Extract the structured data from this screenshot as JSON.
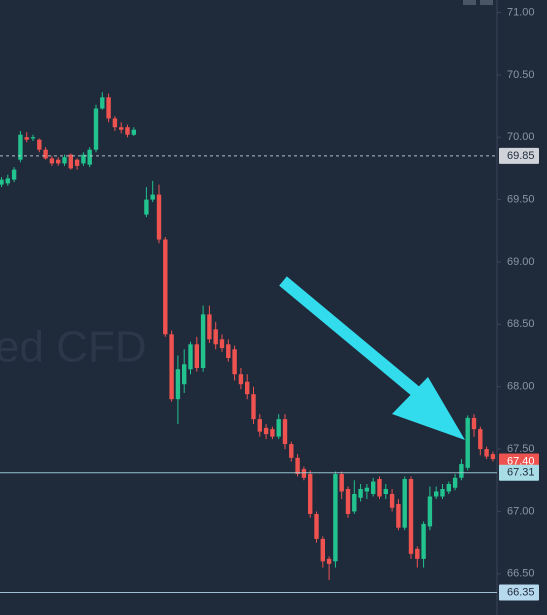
{
  "chart_data": {
    "type": "candlestick",
    "watermark": "ed CFD",
    "up_color": "#22c38e",
    "down_color": "#ef5350",
    "ylim": [
      66.17,
      71.1
    ],
    "yticks": [
      {
        "value": 71,
        "label": "71.00"
      },
      {
        "value": 70.5,
        "label": "70.50"
      },
      {
        "value": 70,
        "label": "70.00"
      },
      {
        "value": 69.5,
        "label": "69.50"
      },
      {
        "value": 69,
        "label": "69.00"
      },
      {
        "value": 68.5,
        "label": "68.50"
      },
      {
        "value": 68,
        "label": "68.00"
      },
      {
        "value": 67.5,
        "label": "67.50"
      },
      {
        "value": 67,
        "label": "67.00"
      },
      {
        "value": 66.5,
        "label": "66.50"
      }
    ],
    "price_lines": [
      {
        "value": 69.85,
        "label": "69.85",
        "color": "#d0d4da",
        "text_color": "#1f2a3b",
        "style": "dashed"
      },
      {
        "value": 67.4,
        "label": "67.40",
        "color": "#ef5350",
        "text_color": "#ffffff",
        "style": "none"
      },
      {
        "value": 67.31,
        "label": "67.31",
        "color": "#a9dde6",
        "text_color": "#1f2a3b",
        "style": "solid"
      },
      {
        "value": 66.35,
        "label": "66.35",
        "color": "#b7d9ee",
        "text_color": "#1f2a3b",
        "style": "solid"
      }
    ],
    "open": [
      69.62,
      69.63,
      69.66,
      69.82,
      70.0,
      69.99,
      69.98,
      69.9,
      69.83,
      69.82,
      69.79,
      69.86,
      69.82,
      69.79,
      69.78,
      69.9,
      70.23,
      70.32,
      70.15,
      70.08,
      70.08,
      70.02,
      null,
      69.38,
      69.5,
      69.54,
      69.18,
      68.42,
      67.9,
      68.02,
      68.14,
      68.34,
      68.15,
      68.58,
      68.46,
      68.38,
      68.34,
      68.3,
      68.1,
      68.04,
      67.94,
      67.74,
      67.67,
      67.66,
      67.6,
      67.74,
      67.54,
      67.43,
      67.34,
      67.3,
      66.98,
      66.78,
      66.62,
      66.6,
      67.3,
      67.18,
      67.0,
      67.11,
      67.16,
      67.14,
      67.26,
      67.14,
      67.14,
      67.06,
      66.87,
      67.26,
      66.7,
      66.62,
      66.88,
      67.12,
      67.12,
      67.16,
      67.19,
      67.27,
      67.35,
      67.75,
      67.66,
      67.5,
      67.46
    ],
    "high": [
      69.68,
      69.7,
      69.76,
      70.05,
      70.04,
      70.02,
      69.99,
      69.92,
      69.85,
      69.84,
      69.86,
      69.87,
      69.83,
      69.88,
      69.92,
      70.26,
      70.36,
      70.35,
      70.17,
      70.12,
      70.1,
      70.08,
      null,
      69.6,
      69.65,
      69.62,
      69.2,
      68.45,
      68.25,
      68.3,
      68.36,
      68.4,
      68.65,
      68.65,
      68.52,
      68.42,
      68.38,
      68.33,
      68.15,
      68.1,
      68.0,
      67.78,
      67.7,
      67.68,
      67.78,
      67.78,
      67.56,
      67.46,
      67.36,
      67.33,
      67.0,
      66.8,
      66.64,
      67.32,
      67.32,
      67.2,
      67.25,
      67.22,
      67.22,
      67.27,
      67.28,
      67.22,
      67.18,
      67.1,
      67.28,
      67.28,
      66.72,
      66.92,
      67.2,
      67.2,
      67.22,
      67.24,
      67.3,
      67.42,
      67.77,
      67.78,
      67.68,
      67.52,
      67.48
    ],
    "low": [
      69.6,
      69.61,
      69.64,
      69.8,
      69.96,
      69.97,
      69.88,
      69.82,
      69.77,
      69.77,
      69.77,
      69.74,
      69.74,
      69.77,
      69.76,
      69.88,
      70.22,
      70.12,
      70.05,
      70.03,
      70.0,
      70.01,
      null,
      69.36,
      69.48,
      69.15,
      68.4,
      67.88,
      67.7,
      67.95,
      68.1,
      68.12,
      68.12,
      68.35,
      68.3,
      68.28,
      68.2,
      68.05,
      67.98,
      67.9,
      67.7,
      67.6,
      67.58,
      67.58,
      67.58,
      67.5,
      67.4,
      67.28,
      67.25,
      66.95,
      66.75,
      66.55,
      66.45,
      66.55,
      67.1,
      66.95,
      66.98,
      67.08,
      67.1,
      67.12,
      67.1,
      67.1,
      67.0,
      66.85,
      66.85,
      66.62,
      66.55,
      66.55,
      66.85,
      67.1,
      67.1,
      67.14,
      67.17,
      67.25,
      67.33,
      67.6,
      67.45,
      67.42,
      67.4
    ],
    "close": [
      69.66,
      69.67,
      69.74,
      70.02,
      69.98,
      70.0,
      69.9,
      69.83,
      69.79,
      69.79,
      69.84,
      69.75,
      69.77,
      69.86,
      69.9,
      70.23,
      70.32,
      70.15,
      70.08,
      70.06,
      70.02,
      70.06,
      null,
      69.5,
      69.54,
      69.18,
      68.42,
      67.9,
      68.14,
      68.18,
      68.34,
      68.15,
      68.58,
      68.38,
      68.34,
      68.31,
      68.23,
      68.1,
      68.02,
      67.94,
      67.74,
      67.64,
      67.62,
      67.6,
      67.74,
      67.54,
      67.43,
      67.3,
      67.27,
      66.98,
      66.78,
      66.6,
      66.58,
      67.3,
      67.16,
      66.98,
      67.14,
      67.18,
      67.19,
      67.24,
      67.12,
      67.18,
      67.03,
      66.87,
      67.26,
      66.66,
      66.62,
      66.9,
      67.12,
      67.16,
      67.18,
      67.22,
      67.27,
      67.38,
      67.75,
      67.66,
      67.5,
      67.44,
      67.42
    ]
  }
}
